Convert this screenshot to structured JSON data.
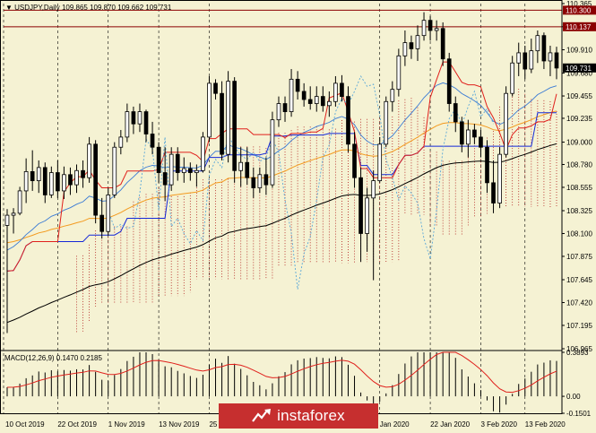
{
  "header": {
    "symbol": "USDJPY,Daily",
    "ohlc": "109.865 109.870 109.662 109.731"
  },
  "macd_label": "MACD(12,26,9) 0.1470 0.2185",
  "watermark": "instaforex",
  "colors": {
    "background": "#f5f2d3",
    "bull": "#ffffff",
    "bear": "#000000",
    "tenkan": "#e0201c",
    "kijun": "#1528d8",
    "ma_fast": "#3a7bd5",
    "ma_mid": "#f39a1f",
    "ma_slow": "#000000",
    "cloud": "#b01818",
    "chikou": "#59a7d8",
    "hline": "#8b0000",
    "label_box": "#8b0000",
    "current_price": "#000000"
  },
  "chart_data": {
    "type": "candlestick",
    "y_ticks": [
      110.365,
      110.137,
      109.91,
      109.68,
      109.455,
      109.235,
      109.0,
      108.78,
      108.555,
      108.325,
      108.1,
      107.875,
      107.645,
      107.42,
      107.195,
      106.965
    ],
    "y_range": [
      106.965,
      110.365
    ],
    "x_labels": [
      "10 Oct 2019",
      "22 Oct 2019",
      "1 Nov 2019",
      "13 Nov 2019",
      "25 Nov 20",
      "Jan 2020",
      "22 Jan 2020",
      "3 Feb 2020",
      "13 Feb 2020"
    ],
    "x_label_index": [
      0,
      8,
      16,
      24,
      32,
      59,
      67,
      75,
      82
    ],
    "levels": [
      {
        "value": 110.3,
        "label": "110.300"
      },
      {
        "value": 110.137,
        "label": "110.137"
      }
    ],
    "current_price": {
      "value": 109.731,
      "label": "109.731"
    },
    "grid": "vertical-dashed",
    "candles": [
      [
        108.18,
        108.34,
        107.12,
        108.28
      ],
      [
        108.28,
        108.35,
        108.1,
        108.3
      ],
      [
        108.3,
        108.56,
        108.28,
        108.52
      ],
      [
        108.52,
        108.84,
        108.4,
        108.71
      ],
      [
        108.71,
        108.92,
        108.52,
        108.62
      ],
      [
        108.62,
        108.82,
        108.5,
        108.75
      ],
      [
        108.75,
        108.8,
        108.4,
        108.48
      ],
      [
        108.48,
        108.76,
        108.45,
        108.7
      ],
      [
        108.7,
        108.82,
        108.45,
        108.52
      ],
      [
        108.52,
        108.76,
        108.44,
        108.68
      ],
      [
        108.68,
        108.75,
        108.48,
        108.58
      ],
      [
        108.58,
        108.78,
        108.5,
        108.72
      ],
      [
        108.72,
        108.82,
        108.55,
        108.65
      ],
      [
        108.65,
        109.05,
        108.6,
        108.98
      ],
      [
        108.98,
        109.02,
        108.2,
        108.28
      ],
      [
        108.28,
        108.45,
        108.05,
        108.12
      ],
      [
        108.12,
        108.55,
        108.08,
        108.48
      ],
      [
        108.48,
        109.0,
        108.45,
        108.95
      ],
      [
        108.95,
        109.12,
        108.88,
        109.05
      ],
      [
        109.05,
        109.38,
        109.0,
        109.3
      ],
      [
        109.3,
        109.35,
        109.08,
        109.18
      ],
      [
        109.18,
        109.38,
        109.1,
        109.3
      ],
      [
        109.3,
        109.32,
        109.0,
        109.08
      ],
      [
        109.08,
        109.2,
        108.88,
        108.95
      ],
      [
        108.95,
        109.0,
        108.6,
        108.7
      ],
      [
        108.7,
        108.95,
        108.42,
        108.58
      ],
      [
        108.58,
        108.95,
        108.52,
        108.88
      ],
      [
        108.88,
        108.95,
        108.62,
        108.7
      ],
      [
        108.7,
        108.85,
        108.6,
        108.74
      ],
      [
        108.74,
        108.8,
        108.62,
        108.7
      ],
      [
        108.7,
        108.78,
        108.56,
        108.72
      ],
      [
        108.72,
        109.1,
        108.7,
        109.05
      ],
      [
        109.05,
        109.65,
        109.0,
        109.58
      ],
      [
        109.58,
        109.62,
        109.42,
        109.48
      ],
      [
        109.48,
        109.6,
        108.82,
        108.88
      ],
      [
        108.88,
        109.7,
        108.8,
        109.6
      ],
      [
        109.6,
        109.64,
        108.6,
        108.72
      ],
      [
        108.72,
        108.95,
        108.56,
        108.8
      ],
      [
        108.8,
        108.95,
        108.58,
        108.65
      ],
      [
        108.65,
        108.75,
        108.45,
        108.55
      ],
      [
        108.55,
        108.75,
        108.5,
        108.68
      ],
      [
        108.68,
        108.85,
        108.48,
        108.58
      ],
      [
        108.58,
        109.3,
        108.55,
        109.22
      ],
      [
        109.22,
        109.45,
        109.15,
        109.38
      ],
      [
        109.38,
        109.45,
        109.2,
        109.3
      ],
      [
        109.3,
        109.72,
        109.25,
        109.62
      ],
      [
        109.62,
        109.7,
        109.42,
        109.5
      ],
      [
        109.5,
        109.58,
        109.35,
        109.42
      ],
      [
        109.42,
        109.55,
        109.32,
        109.38
      ],
      [
        109.38,
        109.55,
        109.3,
        109.45
      ],
      [
        109.45,
        109.55,
        109.3,
        109.36
      ],
      [
        109.36,
        109.5,
        109.25,
        109.4
      ],
      [
        109.4,
        109.65,
        109.35,
        109.58
      ],
      [
        109.58,
        109.66,
        109.4,
        109.45
      ],
      [
        109.45,
        109.55,
        108.9,
        108.98
      ],
      [
        108.98,
        109.1,
        108.55,
        108.65
      ],
      [
        108.65,
        108.75,
        107.82,
        108.1
      ],
      [
        108.1,
        108.55,
        107.92,
        108.45
      ],
      [
        108.45,
        108.72,
        107.64,
        108.62
      ],
      [
        108.62,
        109.05,
        108.6,
        108.98
      ],
      [
        108.98,
        109.45,
        108.95,
        109.4
      ],
      [
        109.4,
        109.6,
        109.3,
        109.52
      ],
      [
        109.52,
        109.92,
        109.45,
        109.85
      ],
      [
        109.85,
        110.1,
        109.75,
        109.98
      ],
      [
        109.98,
        110.05,
        109.82,
        109.92
      ],
      [
        109.92,
        110.15,
        109.8,
        110.05
      ],
      [
        110.05,
        110.28,
        110.0,
        110.2
      ],
      [
        110.2,
        110.24,
        110.0,
        110.1
      ],
      [
        110.1,
        110.2,
        110.0,
        110.12
      ],
      [
        110.12,
        110.18,
        109.75,
        109.82
      ],
      [
        109.82,
        109.88,
        109.3,
        109.38
      ],
      [
        109.38,
        109.45,
        109.1,
        109.2
      ],
      [
        109.2,
        109.25,
        108.9,
        108.98
      ],
      [
        108.98,
        109.22,
        108.85,
        109.12
      ],
      [
        109.12,
        109.18,
        108.98,
        109.05
      ],
      [
        109.05,
        109.12,
        108.85,
        108.95
      ],
      [
        108.95,
        109.02,
        108.5,
        108.6
      ],
      [
        108.6,
        108.82,
        108.3,
        108.4
      ],
      [
        108.4,
        108.95,
        108.35,
        108.88
      ],
      [
        108.88,
        109.55,
        108.85,
        109.48
      ],
      [
        109.48,
        109.85,
        109.45,
        109.78
      ],
      [
        109.78,
        109.98,
        109.65,
        109.88
      ],
      [
        109.88,
        109.95,
        109.62,
        109.72
      ],
      [
        109.72,
        110.02,
        109.68,
        109.9
      ],
      [
        109.9,
        110.1,
        109.78,
        110.05
      ],
      [
        110.05,
        110.08,
        109.72,
        109.8
      ],
      [
        109.8,
        109.95,
        109.65,
        109.88
      ],
      [
        109.88,
        109.94,
        109.62,
        109.73
      ]
    ],
    "macd": {
      "label": "MACD(12,26,9)",
      "values": [
        0.147,
        0.2185
      ],
      "y_ticks": [
        0.3893,
        0.0,
        -0.1501
      ],
      "y_range": [
        -0.1501,
        0.3893
      ]
    }
  }
}
